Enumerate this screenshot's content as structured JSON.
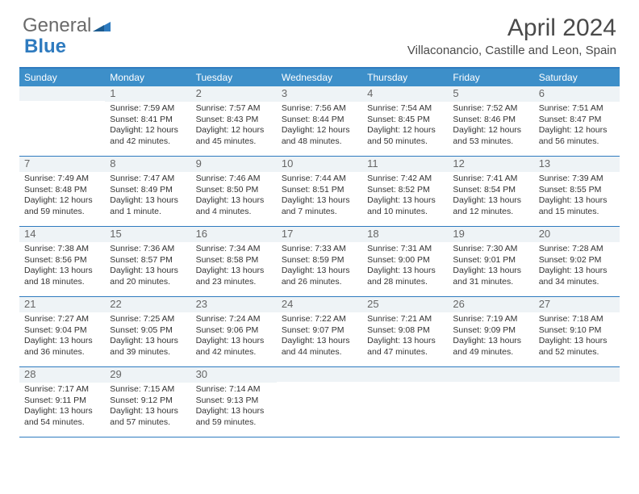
{
  "logo": {
    "text1": "General",
    "text2": "Blue"
  },
  "title": "April 2024",
  "location": "Villaconancio, Castille and Leon, Spain",
  "weekdays": [
    "Sunday",
    "Monday",
    "Tuesday",
    "Wednesday",
    "Thursday",
    "Friday",
    "Saturday"
  ],
  "colors": {
    "header_bar": "#3d8fc9",
    "border": "#2f7bbf",
    "daynum_bg": "#eef3f6",
    "text": "#333333",
    "logo_gray": "#6a6a6a",
    "logo_blue": "#2f7bbf"
  },
  "weeks": [
    [
      {
        "n": "",
        "sr": "",
        "ss": "",
        "dl1": "",
        "dl2": ""
      },
      {
        "n": "1",
        "sr": "Sunrise: 7:59 AM",
        "ss": "Sunset: 8:41 PM",
        "dl1": "Daylight: 12 hours",
        "dl2": "and 42 minutes."
      },
      {
        "n": "2",
        "sr": "Sunrise: 7:57 AM",
        "ss": "Sunset: 8:43 PM",
        "dl1": "Daylight: 12 hours",
        "dl2": "and 45 minutes."
      },
      {
        "n": "3",
        "sr": "Sunrise: 7:56 AM",
        "ss": "Sunset: 8:44 PM",
        "dl1": "Daylight: 12 hours",
        "dl2": "and 48 minutes."
      },
      {
        "n": "4",
        "sr": "Sunrise: 7:54 AM",
        "ss": "Sunset: 8:45 PM",
        "dl1": "Daylight: 12 hours",
        "dl2": "and 50 minutes."
      },
      {
        "n": "5",
        "sr": "Sunrise: 7:52 AM",
        "ss": "Sunset: 8:46 PM",
        "dl1": "Daylight: 12 hours",
        "dl2": "and 53 minutes."
      },
      {
        "n": "6",
        "sr": "Sunrise: 7:51 AM",
        "ss": "Sunset: 8:47 PM",
        "dl1": "Daylight: 12 hours",
        "dl2": "and 56 minutes."
      }
    ],
    [
      {
        "n": "7",
        "sr": "Sunrise: 7:49 AM",
        "ss": "Sunset: 8:48 PM",
        "dl1": "Daylight: 12 hours",
        "dl2": "and 59 minutes."
      },
      {
        "n": "8",
        "sr": "Sunrise: 7:47 AM",
        "ss": "Sunset: 8:49 PM",
        "dl1": "Daylight: 13 hours",
        "dl2": "and 1 minute."
      },
      {
        "n": "9",
        "sr": "Sunrise: 7:46 AM",
        "ss": "Sunset: 8:50 PM",
        "dl1": "Daylight: 13 hours",
        "dl2": "and 4 minutes."
      },
      {
        "n": "10",
        "sr": "Sunrise: 7:44 AM",
        "ss": "Sunset: 8:51 PM",
        "dl1": "Daylight: 13 hours",
        "dl2": "and 7 minutes."
      },
      {
        "n": "11",
        "sr": "Sunrise: 7:42 AM",
        "ss": "Sunset: 8:52 PM",
        "dl1": "Daylight: 13 hours",
        "dl2": "and 10 minutes."
      },
      {
        "n": "12",
        "sr": "Sunrise: 7:41 AM",
        "ss": "Sunset: 8:54 PM",
        "dl1": "Daylight: 13 hours",
        "dl2": "and 12 minutes."
      },
      {
        "n": "13",
        "sr": "Sunrise: 7:39 AM",
        "ss": "Sunset: 8:55 PM",
        "dl1": "Daylight: 13 hours",
        "dl2": "and 15 minutes."
      }
    ],
    [
      {
        "n": "14",
        "sr": "Sunrise: 7:38 AM",
        "ss": "Sunset: 8:56 PM",
        "dl1": "Daylight: 13 hours",
        "dl2": "and 18 minutes."
      },
      {
        "n": "15",
        "sr": "Sunrise: 7:36 AM",
        "ss": "Sunset: 8:57 PM",
        "dl1": "Daylight: 13 hours",
        "dl2": "and 20 minutes."
      },
      {
        "n": "16",
        "sr": "Sunrise: 7:34 AM",
        "ss": "Sunset: 8:58 PM",
        "dl1": "Daylight: 13 hours",
        "dl2": "and 23 minutes."
      },
      {
        "n": "17",
        "sr": "Sunrise: 7:33 AM",
        "ss": "Sunset: 8:59 PM",
        "dl1": "Daylight: 13 hours",
        "dl2": "and 26 minutes."
      },
      {
        "n": "18",
        "sr": "Sunrise: 7:31 AM",
        "ss": "Sunset: 9:00 PM",
        "dl1": "Daylight: 13 hours",
        "dl2": "and 28 minutes."
      },
      {
        "n": "19",
        "sr": "Sunrise: 7:30 AM",
        "ss": "Sunset: 9:01 PM",
        "dl1": "Daylight: 13 hours",
        "dl2": "and 31 minutes."
      },
      {
        "n": "20",
        "sr": "Sunrise: 7:28 AM",
        "ss": "Sunset: 9:02 PM",
        "dl1": "Daylight: 13 hours",
        "dl2": "and 34 minutes."
      }
    ],
    [
      {
        "n": "21",
        "sr": "Sunrise: 7:27 AM",
        "ss": "Sunset: 9:04 PM",
        "dl1": "Daylight: 13 hours",
        "dl2": "and 36 minutes."
      },
      {
        "n": "22",
        "sr": "Sunrise: 7:25 AM",
        "ss": "Sunset: 9:05 PM",
        "dl1": "Daylight: 13 hours",
        "dl2": "and 39 minutes."
      },
      {
        "n": "23",
        "sr": "Sunrise: 7:24 AM",
        "ss": "Sunset: 9:06 PM",
        "dl1": "Daylight: 13 hours",
        "dl2": "and 42 minutes."
      },
      {
        "n": "24",
        "sr": "Sunrise: 7:22 AM",
        "ss": "Sunset: 9:07 PM",
        "dl1": "Daylight: 13 hours",
        "dl2": "and 44 minutes."
      },
      {
        "n": "25",
        "sr": "Sunrise: 7:21 AM",
        "ss": "Sunset: 9:08 PM",
        "dl1": "Daylight: 13 hours",
        "dl2": "and 47 minutes."
      },
      {
        "n": "26",
        "sr": "Sunrise: 7:19 AM",
        "ss": "Sunset: 9:09 PM",
        "dl1": "Daylight: 13 hours",
        "dl2": "and 49 minutes."
      },
      {
        "n": "27",
        "sr": "Sunrise: 7:18 AM",
        "ss": "Sunset: 9:10 PM",
        "dl1": "Daylight: 13 hours",
        "dl2": "and 52 minutes."
      }
    ],
    [
      {
        "n": "28",
        "sr": "Sunrise: 7:17 AM",
        "ss": "Sunset: 9:11 PM",
        "dl1": "Daylight: 13 hours",
        "dl2": "and 54 minutes."
      },
      {
        "n": "29",
        "sr": "Sunrise: 7:15 AM",
        "ss": "Sunset: 9:12 PM",
        "dl1": "Daylight: 13 hours",
        "dl2": "and 57 minutes."
      },
      {
        "n": "30",
        "sr": "Sunrise: 7:14 AM",
        "ss": "Sunset: 9:13 PM",
        "dl1": "Daylight: 13 hours",
        "dl2": "and 59 minutes."
      },
      {
        "n": "",
        "sr": "",
        "ss": "",
        "dl1": "",
        "dl2": ""
      },
      {
        "n": "",
        "sr": "",
        "ss": "",
        "dl1": "",
        "dl2": ""
      },
      {
        "n": "",
        "sr": "",
        "ss": "",
        "dl1": "",
        "dl2": ""
      },
      {
        "n": "",
        "sr": "",
        "ss": "",
        "dl1": "",
        "dl2": ""
      }
    ]
  ]
}
